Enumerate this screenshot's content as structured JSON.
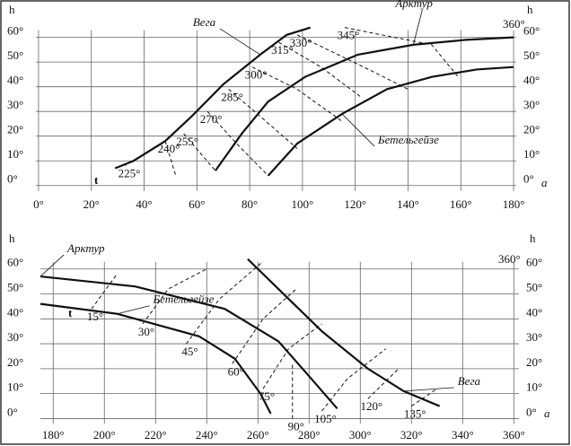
{
  "chart_data": [
    {
      "type": "line",
      "y_label": "h",
      "x_label": "a",
      "xlim": [
        -1,
        181
      ],
      "ylim": [
        -3,
        71.5
      ],
      "xticks": [
        {
          "value": 0,
          "label": "0°"
        },
        {
          "value": 20,
          "label": "20°"
        },
        {
          "value": 40,
          "label": "40°"
        },
        {
          "value": 60,
          "label": "60°"
        },
        {
          "value": 80,
          "label": "80°"
        },
        {
          "value": 100,
          "label": "100°"
        },
        {
          "value": 120,
          "label": "120°"
        },
        {
          "value": 140,
          "label": "140°"
        },
        {
          "value": 160,
          "label": "160°"
        },
        {
          "value": 180,
          "label": "180°"
        }
      ],
      "yticks": [
        {
          "value": 0,
          "label": "0°"
        },
        {
          "value": 10,
          "label": "10°"
        },
        {
          "value": 20,
          "label": "20°"
        },
        {
          "value": 30,
          "label": "30°"
        },
        {
          "value": 40,
          "label": "40°"
        },
        {
          "value": 50,
          "label": "50°"
        },
        {
          "value": 60,
          "label": "60°"
        }
      ],
      "grid": true,
      "series": [
        {
          "name": "Вега",
          "color": "#111",
          "style": "solid",
          "x": [
            29,
            36,
            48,
            58,
            70,
            84,
            94,
            103
          ],
          "values": [
            7,
            10,
            18,
            28,
            41,
            53,
            61,
            64
          ]
        },
        {
          "name": "Арктур",
          "color": "#111",
          "style": "solid",
          "x": [
            67,
            77,
            87,
            101,
            121,
            142,
            162,
            180
          ],
          "values": [
            6,
            21,
            34,
            44,
            53,
            57,
            59,
            60
          ]
        },
        {
          "name": "Бетельгейзе",
          "color": "#111",
          "style": "solid",
          "x": [
            87,
            98,
            115,
            132,
            149,
            166,
            180
          ],
          "values": [
            4,
            17,
            29,
            39,
            44,
            47,
            48
          ]
        },
        {
          "name": "225°",
          "color": "#111",
          "style": "dashed",
          "x": [
            33
          ],
          "values": [
            8
          ]
        },
        {
          "name": "240°",
          "color": "#111",
          "style": "dashed",
          "x": [
            48,
            52
          ],
          "values": [
            18,
            4
          ]
        },
        {
          "name": "255°",
          "color": "#111",
          "style": "dashed",
          "x": [
            55,
            67
          ],
          "values": [
            21,
            6
          ]
        },
        {
          "name": "270°",
          "color": "#111",
          "style": "dashed",
          "x": [
            64,
            75,
            87
          ],
          "values": [
            30,
            17,
            4
          ]
        },
        {
          "name": "285°",
          "color": "#111",
          "style": "dashed",
          "x": [
            72,
            84,
            98
          ],
          "values": [
            39,
            28,
            15
          ]
        },
        {
          "name": "300°",
          "color": "#111",
          "style": "dashed",
          "x": [
            81,
            98,
            115
          ],
          "values": [
            48,
            39,
            26
          ]
        },
        {
          "name": "315°",
          "color": "#111",
          "style": "dashed",
          "x": [
            91,
            107,
            122
          ],
          "values": [
            58,
            48,
            36
          ]
        },
        {
          "name": "330°",
          "color": "#111",
          "style": "dashed",
          "x": [
            98,
            127,
            140
          ],
          "values": [
            61,
            46,
            39
          ]
        },
        {
          "name": "345°",
          "color": "#111",
          "style": "dashed",
          "x": [
            116,
            149,
            159
          ],
          "values": [
            64,
            57,
            44
          ]
        }
      ],
      "annotations": [
        "t",
        "360°"
      ]
    },
    {
      "type": "line",
      "y_label": "h",
      "x_label": "a",
      "xlim": [
        175,
        362
      ],
      "ylim": [
        -2,
        72.5
      ],
      "xticks": [
        {
          "value": 180,
          "label": "180°"
        },
        {
          "value": 200,
          "label": "200°"
        },
        {
          "value": 220,
          "label": "220°"
        },
        {
          "value": 240,
          "label": "240°"
        },
        {
          "value": 260,
          "label": "260°"
        },
        {
          "value": 280,
          "label": "280°"
        },
        {
          "value": 300,
          "label": "300°"
        },
        {
          "value": 320,
          "label": "320°"
        },
        {
          "value": 340,
          "label": "340°"
        },
        {
          "value": 360,
          "label": "360°"
        }
      ],
      "yticks": [
        {
          "value": 0,
          "label": "0°"
        },
        {
          "value": 10,
          "label": "10°"
        },
        {
          "value": 20,
          "label": "20°"
        },
        {
          "value": 30,
          "label": "30°"
        },
        {
          "value": 40,
          "label": "40°"
        },
        {
          "value": 50,
          "label": "50°"
        },
        {
          "value": 60,
          "label": "60°"
        }
      ],
      "grid": true,
      "series": [
        {
          "name": "Арктур",
          "color": "#111",
          "style": "solid",
          "x": [
            175,
            212,
            247,
            268,
            280,
            291
          ],
          "values": [
            57,
            53,
            44,
            31,
            17,
            4
          ]
        },
        {
          "name": "Бетельгейзе",
          "color": "#111",
          "style": "solid",
          "x": [
            175,
            205,
            237,
            251,
            261,
            265
          ],
          "values": [
            46,
            42,
            33,
            24,
            10,
            2
          ]
        },
        {
          "name": "Вега",
          "color": "#111",
          "style": "solid",
          "x": [
            256,
            271,
            285,
            303,
            317,
            331
          ],
          "values": [
            64,
            49,
            35,
            20,
            11,
            5
          ]
        },
        {
          "name": "15°",
          "color": "#111",
          "style": "dashed",
          "x": [
            195,
            205
          ],
          "values": [
            44,
            58
          ]
        },
        {
          "name": "30°",
          "color": "#111",
          "style": "dashed",
          "x": [
            215,
            225,
            240
          ],
          "values": [
            38,
            52,
            60
          ]
        },
        {
          "name": "45°",
          "color": "#111",
          "style": "dashed",
          "x": [
            232,
            245,
            262
          ],
          "values": [
            30,
            48,
            63
          ]
        },
        {
          "name": "60°",
          "color": "#111",
          "style": "dashed",
          "x": [
            250,
            262,
            275
          ],
          "values": [
            22,
            40,
            52
          ]
        },
        {
          "name": "75°",
          "color": "#111",
          "style": "dashed",
          "x": [
            262,
            272,
            285
          ],
          "values": [
            12,
            28,
            38
          ]
        },
        {
          "name": "90°",
          "color": "#111",
          "style": "dashed",
          "x": [
            273.5,
            273.5
          ],
          "values": [
            0,
            22
          ]
        },
        {
          "name": "105°",
          "color": "#111",
          "style": "dashed",
          "x": [
            285,
            295,
            310
          ],
          "values": [
            3,
            16,
            28
          ]
        },
        {
          "name": "120°",
          "color": "#111",
          "style": "dashed",
          "x": [
            303,
            315
          ],
          "values": [
            8,
            20
          ]
        },
        {
          "name": "135°",
          "color": "#111",
          "style": "dashed",
          "x": [
            320,
            330
          ],
          "values": [
            5,
            12
          ]
        }
      ],
      "annotations": [
        "t",
        "360°"
      ]
    }
  ]
}
